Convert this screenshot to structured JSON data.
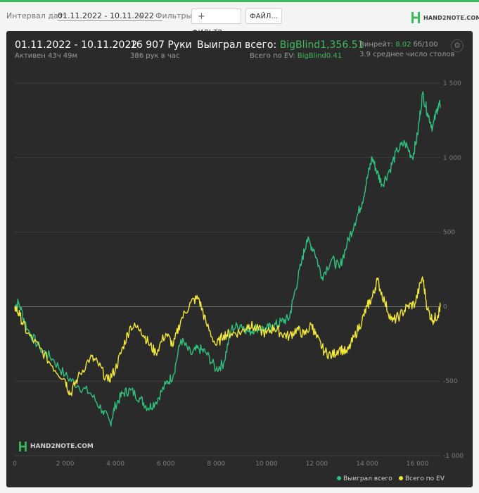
{
  "toolbar": {
    "date_label": "Интервал дат:",
    "date_range": "01.11.2022 - 10.11.2022",
    "filters_label": "Фильтры:",
    "filter_button": "ФИЛЬТР...",
    "file_button": "ФАЙЛ...",
    "logo_text": "HAND2NOTE.COM"
  },
  "header": {
    "period": "01.11.2022 - 10.11.2022",
    "active_time": "Активен 43ч 49м",
    "hands": "16 907 Руки",
    "hands_per_hour": "386 рук в час",
    "won_label": "Выиграл всего:",
    "won_value": "BigBlind1,356.51",
    "ev_label": "Всего по EV:",
    "ev_value": "BigBlind0.41",
    "winrate_label": "Винрейт:",
    "winrate_value": "8.02",
    "winrate_unit": "бб/100",
    "avg_tables": "3.9 среднее число столов"
  },
  "watermark": "HAND2NOTE.COM",
  "colors": {
    "won": "#2ec27e",
    "ev": "#f2e83a",
    "panel": "#2a2a2a"
  },
  "chart_data": {
    "type": "line",
    "x_ticks": [
      "0",
      "2 000",
      "4 000",
      "6 000",
      "8 000",
      "10 000",
      "12 000",
      "14 000",
      "16 000"
    ],
    "y_ticks": [
      "1 500",
      "1 000",
      "500",
      "0",
      "-500",
      "-1 000"
    ],
    "xlim": [
      0,
      16907
    ],
    "ylim": [
      -1000,
      1500
    ],
    "series": [
      {
        "name": "Выиграл всего",
        "color": "#2ec27e",
        "x": [
          0,
          150,
          500,
          1000,
          1500,
          2000,
          2500,
          3000,
          3500,
          3800,
          4000,
          4300,
          4600,
          5000,
          5300,
          5600,
          6000,
          6300,
          6600,
          7000,
          7300,
          7600,
          8000,
          8300,
          8600,
          9000,
          9300,
          9600,
          10000,
          10300,
          10600,
          10900,
          11100,
          11400,
          11600,
          11900,
          12200,
          12600,
          12900,
          13200,
          13500,
          13800,
          14000,
          14200,
          14400,
          14600,
          14900,
          15200,
          15500,
          15800,
          16000,
          16200,
          16400,
          16600,
          16800,
          16907
        ],
        "y": [
          0,
          30,
          -150,
          -280,
          -350,
          -460,
          -530,
          -580,
          -700,
          -780,
          -660,
          -580,
          -560,
          -620,
          -680,
          -640,
          -520,
          -460,
          -220,
          -320,
          -280,
          -310,
          -420,
          -380,
          -150,
          -120,
          -170,
          -140,
          -150,
          -130,
          -100,
          -80,
          80,
          300,
          450,
          380,
          200,
          320,
          260,
          420,
          560,
          700,
          860,
          1000,
          900,
          820,
          920,
          1050,
          1100,
          1000,
          1150,
          1430,
          1300,
          1200,
          1340,
          1356
        ]
      },
      {
        "name": "Всего по EV",
        "color": "#f2e83a",
        "x": [
          0,
          200,
          500,
          1000,
          1500,
          2000,
          2200,
          2500,
          3000,
          3300,
          3700,
          4000,
          4300,
          4600,
          5000,
          5300,
          5600,
          6000,
          6300,
          6600,
          7000,
          7300,
          7600,
          8000,
          8300,
          8600,
          9000,
          9300,
          9600,
          10000,
          10300,
          10600,
          10900,
          11200,
          11500,
          11800,
          12000,
          12300,
          12600,
          12900,
          13200,
          13500,
          13800,
          14000,
          14200,
          14400,
          14700,
          15000,
          15300,
          15600,
          15900,
          16200,
          16400,
          16600,
          16800,
          16907
        ],
        "y": [
          0,
          -60,
          -180,
          -280,
          -400,
          -490,
          -590,
          -480,
          -340,
          -380,
          -500,
          -420,
          -270,
          -130,
          -150,
          -240,
          -310,
          -180,
          -260,
          -90,
          30,
          60,
          -110,
          -260,
          -190,
          -180,
          -170,
          -120,
          -150,
          -180,
          -140,
          -180,
          -200,
          -150,
          -190,
          -120,
          -210,
          -300,
          -330,
          -280,
          -310,
          -200,
          -90,
          0,
          60,
          180,
          30,
          -100,
          -60,
          0,
          20,
          200,
          -20,
          -90,
          -60,
          0
        ]
      }
    ],
    "legend": "bottom-right",
    "grid": true
  }
}
